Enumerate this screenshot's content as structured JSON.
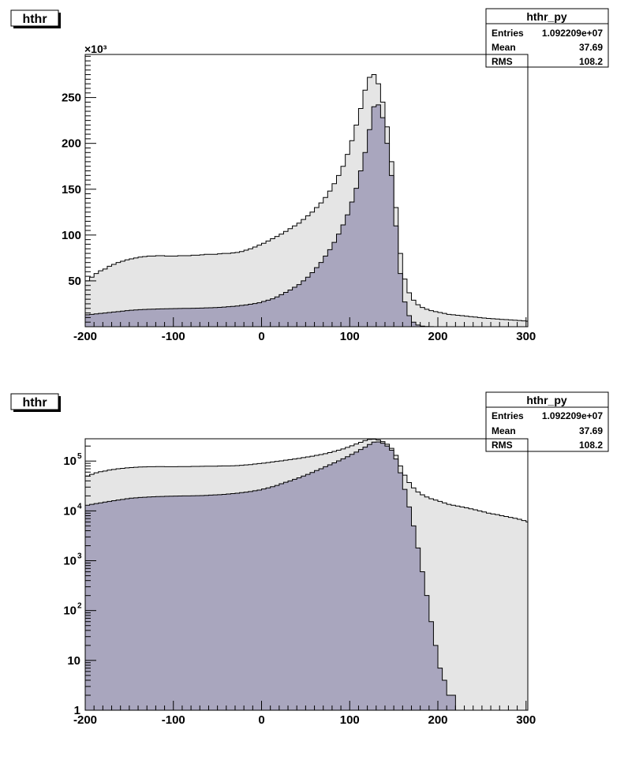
{
  "colors": {
    "all_fill": "#e5e5e5",
    "sel_fill": "#a9a6be",
    "line": "#000000"
  },
  "chart_data": [
    {
      "type": "area",
      "title": "hthr",
      "yscale": "linear",
      "y_multiplier": "×10³",
      "xlim": [
        -200,
        302
      ],
      "ylim": [
        0,
        297000
      ],
      "x_ticks": [
        "-200",
        "-100",
        "0",
        "100",
        "200",
        "300"
      ],
      "y_ticks": [
        "50",
        "100",
        "150",
        "200",
        "250"
      ],
      "stats": {
        "name": "hthr_py",
        "rows": [
          {
            "label": "Entries",
            "value": "1.092209e+07"
          },
          {
            "label": "Mean",
            "value": "37.69"
          },
          {
            "label": "RMS",
            "value": "108.2"
          }
        ]
      },
      "x": [
        -200,
        -195,
        -190,
        -185,
        -180,
        -175,
        -170,
        -165,
        -160,
        -155,
        -150,
        -145,
        -140,
        -135,
        -130,
        -125,
        -120,
        -115,
        -110,
        -105,
        -100,
        -95,
        -90,
        -85,
        -80,
        -75,
        -70,
        -65,
        -60,
        -55,
        -50,
        -45,
        -40,
        -35,
        -30,
        -25,
        -20,
        -15,
        -10,
        -5,
        0,
        5,
        10,
        15,
        20,
        25,
        30,
        35,
        40,
        45,
        50,
        55,
        60,
        65,
        70,
        75,
        80,
        85,
        90,
        95,
        100,
        105,
        110,
        115,
        120,
        125,
        130,
        135,
        140,
        145,
        150,
        155,
        160,
        165,
        170,
        175,
        180,
        185,
        190,
        195,
        200,
        205,
        210,
        215,
        220,
        225,
        230,
        235,
        240,
        245,
        250,
        255,
        260,
        265,
        270,
        275,
        280,
        285,
        290,
        295,
        300
      ],
      "series": [
        {
          "values": [
            50000,
            54000,
            58000,
            61000,
            63000,
            66000,
            68000,
            70000,
            71500,
            73000,
            74000,
            75000,
            76000,
            76500,
            77000,
            77000,
            77500,
            77500,
            77000,
            77000,
            77000,
            77500,
            77500,
            77500,
            78000,
            78000,
            78500,
            79000,
            79000,
            79000,
            79500,
            80000,
            80000,
            80500,
            81000,
            82000,
            83500,
            85000,
            87000,
            89000,
            91000,
            93500,
            96000,
            98500,
            101000,
            104000,
            107000,
            110000,
            113000,
            117000,
            121000,
            125000,
            130000,
            135000,
            141000,
            148000,
            156000,
            165000,
            175000,
            188000,
            203000,
            220000,
            238000,
            258000,
            272000,
            275000,
            265000,
            245000,
            218000,
            180000,
            130000,
            80000,
            52000,
            37000,
            29000,
            24000,
            21000,
            19000,
            17500,
            16500,
            15500,
            14500,
            13500,
            13000,
            12500,
            12000,
            11500,
            11000,
            10500,
            10000,
            9500,
            9000,
            8700,
            8400,
            8000,
            7700,
            7400,
            7100,
            6800,
            6400,
            6000
          ]
        },
        {
          "values": [
            13000,
            13500,
            14000,
            14500,
            15000,
            15500,
            16000,
            16500,
            17000,
            17500,
            18000,
            18300,
            18600,
            18800,
            19000,
            19200,
            19400,
            19500,
            19600,
            19700,
            19800,
            19900,
            20000,
            20000,
            20100,
            20200,
            20300,
            20500,
            20700,
            20900,
            21100,
            21400,
            21800,
            22200,
            22600,
            23200,
            23800,
            24500,
            25300,
            26200,
            27500,
            29000,
            30500,
            32500,
            35000,
            37500,
            40000,
            43000,
            46000,
            50000,
            54000,
            59000,
            64500,
            70000,
            77000,
            84000,
            92000,
            101000,
            111000,
            122000,
            136000,
            151000,
            170000,
            190000,
            215000,
            240000,
            242000,
            228000,
            200000,
            165000,
            110000,
            58000,
            27000,
            12000,
            5000,
            1800,
            600,
            200,
            60,
            20,
            7,
            4,
            2,
            2,
            1,
            1,
            1,
            0,
            0,
            1,
            0,
            0,
            0,
            0,
            0,
            0,
            0,
            0,
            0,
            0,
            0
          ]
        }
      ]
    },
    {
      "type": "area",
      "title": "hthr",
      "yscale": "log",
      "xlim": [
        -200,
        302
      ],
      "ylim": [
        1,
        280000
      ],
      "x_ticks": [
        "-200",
        "-100",
        "0",
        "100",
        "200",
        "300"
      ],
      "y_ticks": [
        {
          "base": "10",
          "exp": "5",
          "v": 100000
        },
        {
          "base": "10",
          "exp": "4",
          "v": 10000
        },
        {
          "base": "10",
          "exp": "3",
          "v": 1000
        },
        {
          "base": "10",
          "exp": "2",
          "v": 100
        },
        {
          "base": "10",
          "exp": "",
          "v": 10
        },
        {
          "base": "1",
          "exp": "",
          "v": 1
        }
      ],
      "stats": {
        "name": "hthr_py",
        "rows": [
          {
            "label": "Entries",
            "value": "1.092209e+07"
          },
          {
            "label": "Mean",
            "value": "37.69"
          },
          {
            "label": "RMS",
            "value": "108.2"
          }
        ]
      },
      "x": [
        -200,
        -195,
        -190,
        -185,
        -180,
        -175,
        -170,
        -165,
        -160,
        -155,
        -150,
        -145,
        -140,
        -135,
        -130,
        -125,
        -120,
        -115,
        -110,
        -105,
        -100,
        -95,
        -90,
        -85,
        -80,
        -75,
        -70,
        -65,
        -60,
        -55,
        -50,
        -45,
        -40,
        -35,
        -30,
        -25,
        -20,
        -15,
        -10,
        -5,
        0,
        5,
        10,
        15,
        20,
        25,
        30,
        35,
        40,
        45,
        50,
        55,
        60,
        65,
        70,
        75,
        80,
        85,
        90,
        95,
        100,
        105,
        110,
        115,
        120,
        125,
        130,
        135,
        140,
        145,
        150,
        155,
        160,
        165,
        170,
        175,
        180,
        185,
        190,
        195,
        200,
        205,
        210,
        215,
        220,
        225,
        230,
        235,
        240,
        245,
        250,
        255,
        260,
        265,
        270,
        275,
        280,
        285,
        290,
        295,
        300
      ],
      "series": [
        {
          "values": [
            50000,
            54000,
            58000,
            61000,
            63000,
            66000,
            68000,
            70000,
            71500,
            73000,
            74000,
            75000,
            76000,
            76500,
            77000,
            77000,
            77500,
            77500,
            77000,
            77000,
            77000,
            77500,
            77500,
            77500,
            78000,
            78000,
            78500,
            79000,
            79000,
            79000,
            79500,
            80000,
            80000,
            80500,
            81000,
            82000,
            83500,
            85000,
            87000,
            89000,
            91000,
            93500,
            96000,
            98500,
            101000,
            104000,
            107000,
            110000,
            113000,
            117000,
            121000,
            125000,
            130000,
            135000,
            141000,
            148000,
            156000,
            165000,
            175000,
            188000,
            203000,
            220000,
            238000,
            258000,
            272000,
            275000,
            265000,
            245000,
            218000,
            180000,
            130000,
            80000,
            52000,
            37000,
            29000,
            24000,
            21000,
            19000,
            17500,
            16500,
            15500,
            14500,
            13500,
            13000,
            12500,
            12000,
            11500,
            11000,
            10500,
            10000,
            9500,
            9000,
            8700,
            8400,
            8000,
            7700,
            7400,
            7100,
            6800,
            6400,
            6000
          ]
        },
        {
          "values": [
            13000,
            13500,
            14000,
            14500,
            15000,
            15500,
            16000,
            16500,
            17000,
            17500,
            18000,
            18300,
            18600,
            18800,
            19000,
            19200,
            19400,
            19500,
            19600,
            19700,
            19800,
            19900,
            20000,
            20000,
            20100,
            20200,
            20300,
            20500,
            20700,
            20900,
            21100,
            21400,
            21800,
            22200,
            22600,
            23200,
            23800,
            24500,
            25300,
            26200,
            27500,
            29000,
            30500,
            32500,
            35000,
            37500,
            40000,
            43000,
            46000,
            50000,
            54000,
            59000,
            64500,
            70000,
            77000,
            84000,
            92000,
            101000,
            111000,
            122000,
            136000,
            151000,
            170000,
            190000,
            215000,
            240000,
            242000,
            228000,
            200000,
            165000,
            110000,
            58000,
            27000,
            12000,
            5000,
            1800,
            600,
            200,
            60,
            20,
            7,
            4,
            2,
            2,
            1,
            1,
            1,
            0,
            0,
            1,
            0,
            0,
            0,
            0,
            0,
            0,
            0,
            0,
            0,
            0,
            0
          ]
        }
      ]
    }
  ]
}
